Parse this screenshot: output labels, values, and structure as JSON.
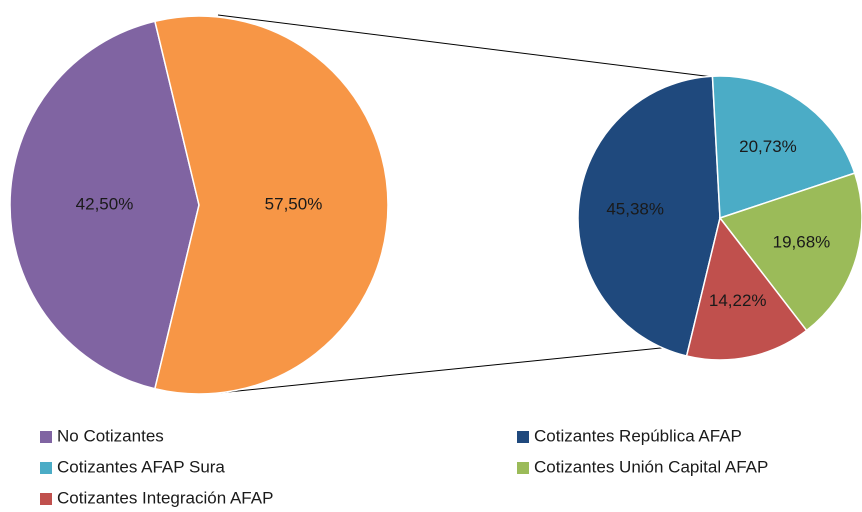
{
  "chart_data": [
    {
      "type": "pie",
      "categories": [
        "No Cotizantes",
        null
      ],
      "values": [
        42.5,
        57.5
      ],
      "value_labels": [
        "42,50%",
        "57,50%"
      ],
      "colors": [
        "#8064a2",
        "#f79646"
      ]
    },
    {
      "type": "pie",
      "categories": [
        "Cotizantes República AFAP",
        "Cotizantes AFAP Sura",
        "Cotizantes Unión Capital AFAP",
        "Cotizantes Integración AFAP"
      ],
      "values": [
        45.38,
        20.73,
        19.68,
        14.22
      ],
      "value_labels": [
        "45,38%",
        "20,73%",
        "19,68%",
        "14,22%"
      ],
      "colors": [
        "#1f497d",
        "#4bacc6",
        "#9bbb59",
        "#c0504d"
      ]
    }
  ]
}
